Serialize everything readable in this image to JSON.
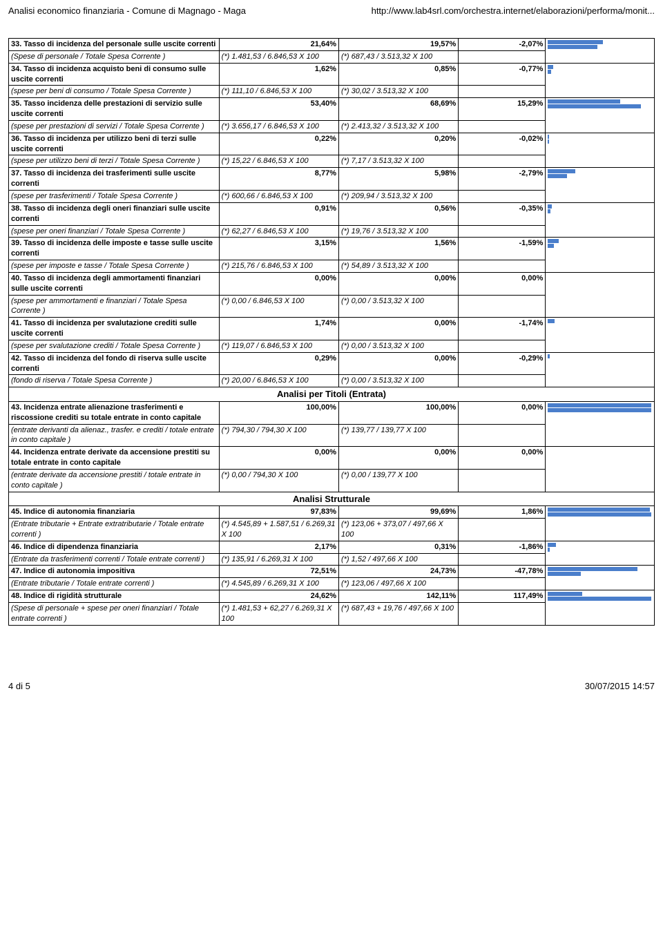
{
  "header": {
    "left": "Analisi economico finanziaria - Comune di Magnago - Maga",
    "right": "http://www.lab4srl.com/orchestra.internet/elaborazioni/performa/monit..."
  },
  "footer": {
    "left": "4 di 5",
    "right": "30/07/2015 14:57"
  },
  "spark": {
    "track_width": 150,
    "bar_color": "#4a7ecb",
    "max_abs_ref": 150
  },
  "sections": [
    {
      "rows": [
        {
          "type": "head",
          "label": "33. Tasso di incidenza del personale sulle uscite correnti",
          "v1": "21,64%",
          "v2": "19,57%",
          "d": "-2,07%",
          "bars": [
            80,
            72
          ]
        },
        {
          "type": "formula",
          "label": "(Spese di personale / Totale Spesa Corrente )",
          "f1": "(*) 1.481,53 / 6.846,53 X 100",
          "f2": "(*) 687,43 / 3.513,32 X 100"
        },
        {
          "type": "head",
          "label": "34. Tasso di incidenza acquisto beni di consumo sulle uscite correnti",
          "v1": "1,62%",
          "v2": "0,85%",
          "d": "-0,77%",
          "bars": [
            8,
            5
          ]
        },
        {
          "type": "formula",
          "label": "(spese per beni di consumo / Totale Spesa Corrente )",
          "f1": "(*) 111,10 / 6.846,53 X 100",
          "f2": "(*) 30,02 / 3.513,32 X 100"
        },
        {
          "type": "head",
          "label": "35. Tasso incidenza delle prestazioni di servizio sulle uscite correnti",
          "v1": "53,40%",
          "v2": "68,69%",
          "d": "15,29%",
          "bars": [
            105,
            135
          ]
        },
        {
          "type": "formula",
          "label": "(spese per prestazioni di servizi / Totale Spesa Corrente )",
          "f1": "(*) 3.656,17 / 6.846,53 X 100",
          "f2": "(*) 2.413,32 / 3.513,32 X 100"
        },
        {
          "type": "head",
          "label": "36. Tasso di incidenza per utilizzo beni di terzi sulle uscite correnti",
          "v1": "0,22%",
          "v2": "0,20%",
          "d": "-0,02%",
          "bars": [
            2,
            2
          ]
        },
        {
          "type": "formula",
          "label": "(spese per utilizzo beni di terzi / Totale Spesa Corrente )",
          "f1": "(*) 15,22 / 6.846,53 X 100",
          "f2": "(*) 7,17 / 3.513,32 X 100"
        },
        {
          "type": "head",
          "label": "37. Tasso di incidenza dei trasferimenti sulle uscite correnti",
          "v1": "8,77%",
          "v2": "5,98%",
          "d": "-2,79%",
          "bars": [
            40,
            28
          ]
        },
        {
          "type": "formula",
          "label": "(spese per trasferimenti / Totale Spesa Corrente )",
          "f1": "(*) 600,66 / 6.846,53 X 100",
          "f2": "(*) 209,94 / 3.513,32 X 100"
        },
        {
          "type": "head",
          "label": "38. Tasso di incidenza degli oneri finanziari sulle uscite correnti",
          "v1": "0,91%",
          "v2": "0,56%",
          "d": "-0,35%",
          "bars": [
            6,
            4
          ]
        },
        {
          "type": "formula",
          "label": "(spese per oneri finanziari / Totale Spesa Corrente )",
          "f1": "(*) 62,27 / 6.846,53 X 100",
          "f2": "(*) 19,76 / 3.513,32 X 100"
        },
        {
          "type": "head",
          "label": "39. Tasso di incidenza delle imposte e tasse sulle uscite correnti",
          "v1": "3,15%",
          "v2": "1,56%",
          "d": "-1,59%",
          "bars": [
            16,
            9
          ]
        },
        {
          "type": "formula",
          "label": "(spese per imposte e tasse / Totale Spesa Corrente )",
          "f1": "(*) 215,76 / 6.846,53 X 100",
          "f2": "(*) 54,89 / 3.513,32 X 100"
        },
        {
          "type": "head",
          "label": "40. Tasso di incidenza degli ammortamenti finanziari sulle uscite correnti",
          "v1": "0,00%",
          "v2": "0,00%",
          "d": "0,00%",
          "bars": [
            0,
            0
          ]
        },
        {
          "type": "formula",
          "label": "(spese per ammortamenti e finanziari / Totale Spesa Corrente )",
          "f1": "(*) 0,00 / 6.846,53 X 100",
          "f2": "(*) 0,00 / 3.513,32 X 100"
        },
        {
          "type": "head",
          "label": "41. Tasso di incidenza per svalutazione crediti sulle uscite correnti",
          "v1": "1,74%",
          "v2": "0,00%",
          "d": "-1,74%",
          "bars": [
            10,
            0
          ]
        },
        {
          "type": "formula",
          "label": "(spese per svalutazione crediti / Totale Spesa Corrente )",
          "f1": "(*) 119,07 / 6.846,53 X 100",
          "f2": "(*) 0,00 / 3.513,32 X 100"
        },
        {
          "type": "head",
          "label": "42. Tasso di incidenza del fondo di riserva sulle uscite correnti",
          "v1": "0,29%",
          "v2": "0,00%",
          "d": "-0,29%",
          "bars": [
            3,
            0
          ]
        },
        {
          "type": "formula",
          "label": "(fondo di riserva / Totale Spesa Corrente )",
          "f1": "(*) 20,00 / 6.846,53 X 100",
          "f2": "(*) 0,00 / 3.513,32 X 100"
        }
      ]
    },
    {
      "title": "Analisi per Titoli (Entrata)",
      "rows": [
        {
          "type": "head",
          "label": "43. Incidenza entrate alienazione trasferimenti e riscossione crediti su totale entrate in conto capitale",
          "v1": "100,00%",
          "v2": "100,00%",
          "d": "0,00%",
          "bars": [
            150,
            150
          ]
        },
        {
          "type": "formula",
          "label": "(entrate derivanti da alienaz., trasfer. e crediti / totale entrate in conto capitale )",
          "f1": "(*) 794,30 / 794,30 X 100",
          "f2": "(*) 139,77 / 139,77 X 100"
        },
        {
          "type": "head",
          "label": "44. Incidenza entrate derivate da accensione prestiti su totale entrate in conto capitale",
          "v1": "0,00%",
          "v2": "0,00%",
          "d": "0,00%",
          "bars": [
            0,
            0
          ]
        },
        {
          "type": "formula",
          "label": "(entrate derivate da accensione prestiti / totale entrate in conto capitale )",
          "f1": "(*) 0,00 / 794,30 X 100",
          "f2": "(*) 0,00 / 139,77 X 100"
        }
      ]
    },
    {
      "title": "Analisi Strutturale",
      "rows": [
        {
          "type": "head",
          "label": "45. Indice di autonomia finanziaria",
          "v1": "97,83%",
          "v2": "99,69%",
          "d": "1,86%",
          "bars": [
            148,
            150
          ]
        },
        {
          "type": "formula",
          "label": "(Entrate tributarie + Entrate extratributarie / Totale entrate correnti )",
          "f1": "(*) 4.545,89 + 1.587,51 / 6.269,31 X 100",
          "f2": "(*) 123,06 + 373,07 / 497,66 X 100"
        },
        {
          "type": "head",
          "label": "46. Indice di dipendenza finanziaria",
          "v1": "2,17%",
          "v2": "0,31%",
          "d": "-1,86%",
          "bars": [
            12,
            3
          ]
        },
        {
          "type": "formula",
          "label": "(Entrate da trasferimenti correnti / Totale entrate correnti )",
          "f1": "(*) 135,91 / 6.269,31 X 100",
          "f2": "(*) 1,52 / 497,66 X 100"
        },
        {
          "type": "head",
          "label": "47. Indice di autonomia impositiva",
          "v1": "72,51%",
          "v2": "24,73%",
          "d": "-47,78%",
          "bars": [
            130,
            48
          ]
        },
        {
          "type": "formula",
          "label": "(Entrate tributarie / Totale entrate correnti )",
          "f1": "(*) 4.545,89 / 6.269,31 X 100",
          "f2": "(*) 123,06 / 497,66 X 100"
        },
        {
          "type": "head",
          "label": "48. Indice di rigidità strutturale",
          "v1": "24,62%",
          "v2": "142,11%",
          "d": "117,49%",
          "bars": [
            50,
            150
          ]
        },
        {
          "type": "formula",
          "label": "(Spese di personale + spese per oneri finanziari / Totale entrate correnti )",
          "f1": "(*) 1.481,53 + 62,27 / 6.269,31 X 100",
          "f2": "(*) 687,43 + 19,76 / 497,66 X 100"
        }
      ]
    }
  ]
}
